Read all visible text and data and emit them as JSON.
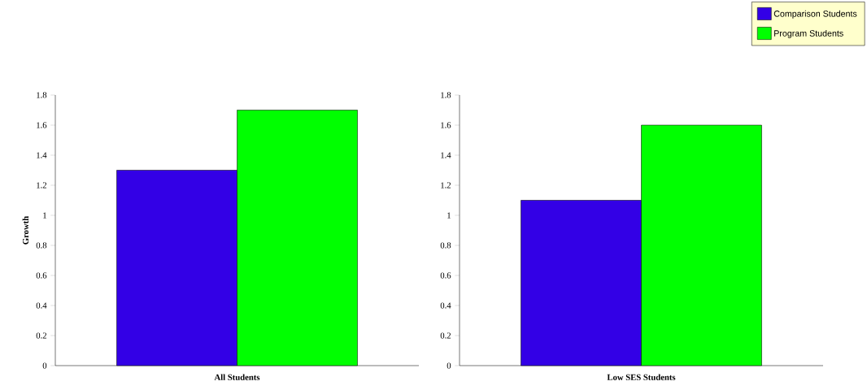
{
  "chart_data": [
    {
      "type": "bar",
      "categories": [
        "All Students"
      ],
      "ylabel": "Growth",
      "ylim": [
        0,
        1.8
      ],
      "yticks": [
        0,
        0.2,
        0.4,
        0.6,
        0.8,
        1,
        1.2,
        1.4,
        1.6,
        1.8
      ],
      "legend": false,
      "series": [
        {
          "color": "#3300e6",
          "values": [
            1.3
          ]
        },
        {
          "color": "#00ff00",
          "values": [
            1.7
          ]
        }
      ]
    },
    {
      "type": "bar",
      "categories": [
        "Low SES Students"
      ],
      "ylim": [
        0,
        1.8
      ],
      "yticks": [
        0,
        0.2,
        0.4,
        0.6,
        0.8,
        1,
        1.2,
        1.4,
        1.6,
        1.8
      ],
      "legend": "top right",
      "series": [
        {
          "name": "Comparison Students",
          "color": "#3300e6",
          "values": [
            1.1
          ]
        },
        {
          "name": "Program Students",
          "color": "#00ff00",
          "values": [
            1.6
          ]
        }
      ]
    }
  ]
}
